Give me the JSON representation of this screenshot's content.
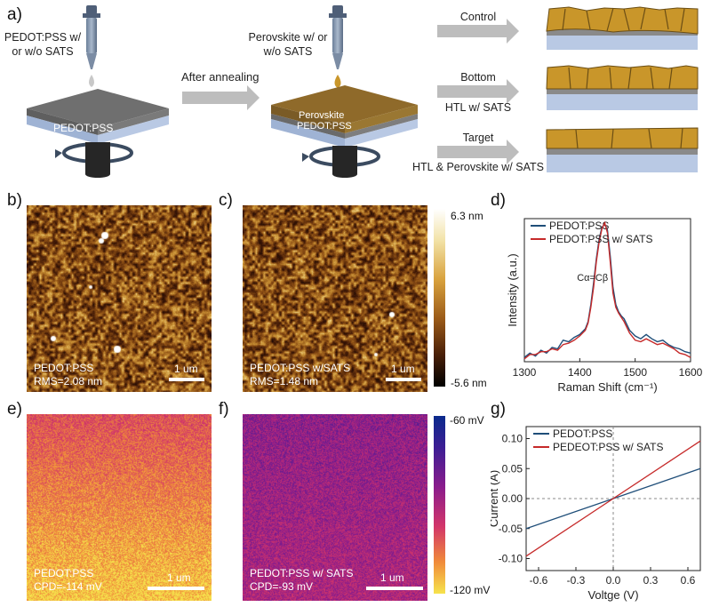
{
  "panel_labels": {
    "a": "a)",
    "b": "b)",
    "c": "c)",
    "d": "d)",
    "e": "e)",
    "f": "f)",
    "g": "g)"
  },
  "panel_a": {
    "step1_label_line1": "PEDOT:PSS w/",
    "step1_label_line2": "or w/o SATS",
    "substrate1_label": "PEDOT:PSS",
    "arrow_label": "After annealing",
    "step2_label_line1": "Perovskite w/ or",
    "step2_label_line2": "w/o SATS",
    "substrate2_top": "Perovskite",
    "substrate2_bottom": "PEDOT:PSS",
    "routes": [
      {
        "top": "Control",
        "bottom": ""
      },
      {
        "top": "Bottom",
        "bottom": "HTL w/ SATS"
      },
      {
        "top": "Target",
        "bottom": "HTL & Perovskite w/ SATS"
      }
    ],
    "colors": {
      "perovskite": "#c9962a",
      "htl": "#8a8a8a",
      "substrate": "#b9c9e4",
      "arrow": "#bdbdbd"
    }
  },
  "panel_b": {
    "line1": "PEDOT:PSS",
    "line2": "RMS=2.08 nm",
    "scale": "1 um"
  },
  "panel_c": {
    "line1": "PEDOT:PSS w/SATS",
    "line2": "RMS=1.48 nm",
    "scale": "1 um"
  },
  "height_colorbar": {
    "max": "6.3 nm",
    "min": "-5.6 nm"
  },
  "panel_e": {
    "line1": "PEDOT:PSS",
    "line2": "CPD=-114 mV",
    "scale": "1 um"
  },
  "panel_f": {
    "line1": "PEDOT:PSS w/ SATS",
    "line2": "CPD=-93 mV",
    "scale": "1 um"
  },
  "cpd_colorbar": {
    "max": "-60 mV",
    "min": "-120 mV"
  },
  "chart_data": [
    {
      "id": "d",
      "type": "line",
      "title": "",
      "xlabel": "Raman Shift (cm⁻¹)",
      "ylabel": "Intensity (a.u.)",
      "xlim": [
        1300,
        1600
      ],
      "xticks": [
        1300,
        1400,
        1500,
        1600
      ],
      "annotation": "Cα=Cβ",
      "legend": "top-left",
      "series": [
        {
          "name": "PEDOT:PSS",
          "color": "#1f4e79",
          "x": [
            1300,
            1310,
            1320,
            1330,
            1340,
            1350,
            1360,
            1370,
            1380,
            1390,
            1400,
            1410,
            1415,
            1420,
            1425,
            1430,
            1435,
            1440,
            1445,
            1450,
            1455,
            1460,
            1465,
            1470,
            1475,
            1480,
            1490,
            1500,
            1510,
            1520,
            1530,
            1540,
            1550,
            1560,
            1570,
            1580,
            1590,
            1600
          ],
          "y": [
            0.03,
            0.06,
            0.04,
            0.08,
            0.06,
            0.1,
            0.09,
            0.15,
            0.14,
            0.17,
            0.19,
            0.23,
            0.28,
            0.4,
            0.55,
            0.72,
            0.86,
            0.94,
            0.96,
            0.92,
            0.74,
            0.52,
            0.4,
            0.35,
            0.32,
            0.3,
            0.22,
            0.18,
            0.16,
            0.19,
            0.16,
            0.14,
            0.15,
            0.12,
            0.1,
            0.09,
            0.07,
            0.06
          ]
        },
        {
          "name": "PEDOT:PSS w/ SATS",
          "color": "#c62a2a",
          "x": [
            1300,
            1310,
            1320,
            1330,
            1340,
            1350,
            1360,
            1370,
            1380,
            1390,
            1400,
            1410,
            1415,
            1420,
            1425,
            1430,
            1435,
            1440,
            1445,
            1450,
            1455,
            1460,
            1465,
            1470,
            1475,
            1480,
            1490,
            1500,
            1510,
            1520,
            1530,
            1540,
            1550,
            1560,
            1570,
            1580,
            1590,
            1600
          ],
          "y": [
            0.02,
            0.05,
            0.05,
            0.07,
            0.07,
            0.09,
            0.08,
            0.12,
            0.13,
            0.15,
            0.18,
            0.22,
            0.27,
            0.38,
            0.52,
            0.7,
            0.84,
            0.93,
            0.97,
            0.9,
            0.7,
            0.48,
            0.38,
            0.34,
            0.31,
            0.28,
            0.2,
            0.15,
            0.14,
            0.16,
            0.14,
            0.12,
            0.13,
            0.11,
            0.09,
            0.06,
            0.05,
            0.03
          ]
        }
      ]
    },
    {
      "id": "g",
      "type": "line",
      "title": "",
      "xlabel": "Voltge (V)",
      "ylabel": "Current (A)",
      "xlim": [
        -0.7,
        0.7
      ],
      "ylim": [
        -0.12,
        0.12
      ],
      "xticks": [
        -0.6,
        -0.3,
        0.0,
        0.3,
        0.6
      ],
      "xticklabels": [
        "-0.6",
        "-0.3",
        "0.0",
        "0.3",
        "0.6"
      ],
      "yticks": [
        -0.1,
        -0.05,
        0.0,
        0.05,
        0.1
      ],
      "yticklabels": [
        "-0.10",
        "-0.05",
        "0.00",
        "0.05",
        "0.10"
      ],
      "legend": "top-left",
      "series": [
        {
          "name": "PEDOT:PSS",
          "color": "#1f4e79",
          "x": [
            -0.7,
            0.7
          ],
          "y": [
            -0.05,
            0.05
          ]
        },
        {
          "name": "PEDEOT:PSS w/ SATS",
          "color": "#c62a2a",
          "x": [
            -0.7,
            0.7
          ],
          "y": [
            -0.096,
            0.096
          ]
        }
      ]
    }
  ]
}
